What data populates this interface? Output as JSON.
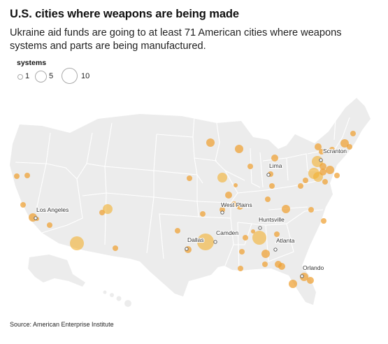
{
  "title": "U.S. cities where weapons are being made",
  "subtitle": "Ukraine aid funds are going to at least 71 American cities where weapons systems and parts are being manufactured.",
  "legend": {
    "title": "systems",
    "entries": [
      {
        "label": "1",
        "value": 1
      },
      {
        "label": "5",
        "value": 5
      },
      {
        "label": "10",
        "value": 10
      }
    ]
  },
  "source": "Source: American Enterprise Institute",
  "colors": {
    "land": "#ececec",
    "state_border": "#ffffff",
    "bubble_fill": "#f2b233",
    "bubble_fill_dark": "#e8901a",
    "label_dot": "#ffffff"
  },
  "labeled_cities": [
    "Los Angeles",
    "Dallas",
    "Camden",
    "West Plains",
    "Huntsville",
    "Atlanta",
    "Lima",
    "Scranton",
    "Orlando"
  ]
}
